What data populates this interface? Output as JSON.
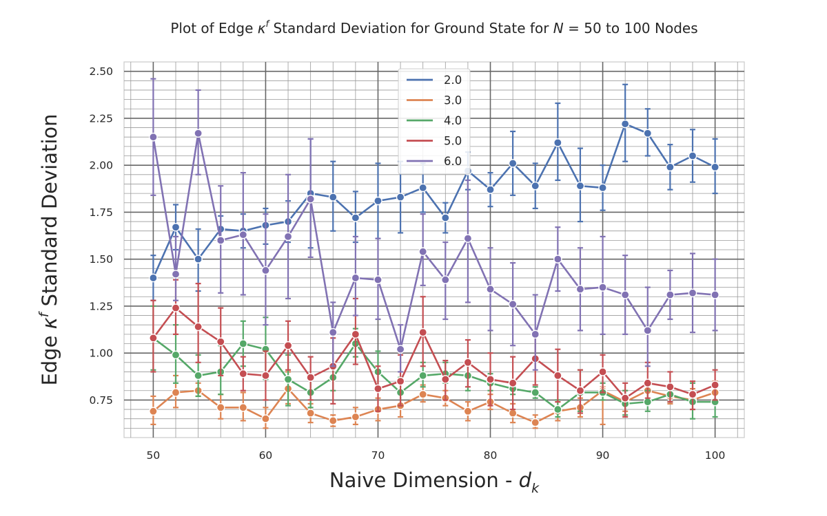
{
  "chart_data": {
    "type": "line",
    "title": "Plot of Edge κᶠ Standard Deviation for Ground State for N = 50 to 100 Nodes",
    "title_parts": {
      "pre": "Plot of Edge ",
      "kappa": "κ",
      "sup": "f",
      "mid": " Standard Deviation for Ground State for ",
      "n": "N",
      "post": " = 50 to 100 Nodes"
    },
    "xlabel": "Naive Dimension - dₖ",
    "xlabel_parts": {
      "pre": "Naive Dimension - ",
      "d": "d",
      "sub": "k"
    },
    "ylabel": "Edge κᶠ Standard Deviation",
    "ylabel_parts": {
      "pre": "Edge ",
      "kappa": "κ",
      "sup": "f",
      "post": " Standard Deviation"
    },
    "xlim": [
      47.4,
      102.6
    ],
    "ylim": [
      0.55,
      2.55
    ],
    "x_ticks": [
      50,
      60,
      70,
      80,
      90,
      100
    ],
    "y_ticks": [
      0.75,
      1.0,
      1.25,
      1.5,
      1.75,
      2.0,
      2.25,
      2.5
    ],
    "y_tick_labels": [
      "0.75",
      "1.00",
      "1.25",
      "1.50",
      "1.75",
      "2.00",
      "2.25",
      "2.50"
    ],
    "grid": true,
    "legend_position": "top-center",
    "x": [
      50,
      52,
      54,
      56,
      58,
      60,
      62,
      64,
      66,
      68,
      70,
      72,
      74,
      76,
      78,
      80,
      82,
      84,
      86,
      88,
      90,
      92,
      94,
      96,
      98,
      100
    ],
    "series": [
      {
        "name": "2.0",
        "color": "#4c72b0",
        "values": [
          1.4,
          1.67,
          1.5,
          1.66,
          1.65,
          1.68,
          1.7,
          1.85,
          1.83,
          1.72,
          1.81,
          1.83,
          1.88,
          1.72,
          1.97,
          1.87,
          2.01,
          1.89,
          2.12,
          1.89,
          1.88,
          2.22,
          2.17,
          1.99,
          2.05,
          1.99
        ],
        "err_low": [
          1.28,
          1.55,
          1.33,
          1.59,
          1.56,
          1.58,
          1.59,
          1.56,
          1.65,
          1.59,
          1.61,
          1.64,
          1.75,
          1.64,
          1.87,
          1.78,
          1.84,
          1.77,
          1.92,
          1.7,
          1.76,
          2.02,
          2.05,
          1.87,
          1.91,
          1.85
        ],
        "err_high": [
          1.52,
          1.79,
          1.66,
          1.73,
          1.74,
          1.77,
          1.81,
          2.14,
          2.02,
          1.86,
          2.01,
          2.02,
          2.01,
          1.8,
          2.07,
          1.96,
          2.18,
          2.01,
          2.33,
          2.09,
          2.0,
          2.43,
          2.3,
          2.11,
          2.19,
          2.14
        ]
      },
      {
        "name": "3.0",
        "color": "#dd8452",
        "values": [
          0.69,
          0.79,
          0.8,
          0.71,
          0.71,
          0.65,
          0.81,
          0.68,
          0.64,
          0.66,
          0.7,
          0.72,
          0.78,
          0.76,
          0.69,
          0.74,
          0.68,
          0.63,
          0.69,
          0.71,
          0.8,
          0.74,
          0.8,
          0.77,
          0.75,
          0.79
        ],
        "err_low": [
          0.62,
          0.71,
          0.77,
          0.65,
          0.64,
          0.6,
          0.73,
          0.63,
          0.61,
          0.62,
          0.64,
          0.66,
          0.74,
          0.72,
          0.64,
          0.7,
          0.63,
          0.6,
          0.64,
          0.66,
          0.62,
          0.69,
          0.75,
          0.73,
          0.7,
          0.74
        ],
        "err_high": [
          0.77,
          0.88,
          0.84,
          0.78,
          0.79,
          0.71,
          0.9,
          0.73,
          0.67,
          0.71,
          0.76,
          0.79,
          0.83,
          0.8,
          0.74,
          0.78,
          0.73,
          0.67,
          0.74,
          0.76,
          0.82,
          0.8,
          0.85,
          0.82,
          0.81,
          0.85
        ]
      },
      {
        "name": "4.0",
        "color": "#55a868",
        "values": [
          1.08,
          0.99,
          0.88,
          0.9,
          1.05,
          1.02,
          0.86,
          0.79,
          0.87,
          1.05,
          0.9,
          0.79,
          0.88,
          0.89,
          0.88,
          0.84,
          0.81,
          0.79,
          0.7,
          0.79,
          0.79,
          0.73,
          0.74,
          0.78,
          0.74,
          0.74
        ],
        "err_low": [
          0.91,
          0.84,
          0.77,
          0.78,
          0.93,
          0.86,
          0.72,
          0.71,
          0.8,
          0.98,
          0.8,
          0.72,
          0.82,
          0.84,
          0.8,
          0.8,
          0.78,
          0.76,
          0.66,
          0.69,
          0.75,
          0.67,
          0.69,
          0.74,
          0.65,
          0.66
        ],
        "err_high": [
          1.25,
          1.15,
          0.99,
          1.04,
          1.17,
          1.19,
          0.99,
          0.88,
          0.94,
          1.13,
          1.01,
          0.87,
          0.95,
          0.95,
          0.96,
          0.89,
          0.85,
          0.82,
          0.75,
          0.91,
          0.84,
          0.8,
          0.8,
          0.83,
          0.84,
          0.83
        ]
      },
      {
        "name": "5.0",
        "color": "#c44e52",
        "values": [
          1.08,
          1.24,
          1.14,
          1.06,
          0.89,
          0.88,
          1.04,
          0.87,
          0.93,
          1.1,
          0.81,
          0.85,
          1.11,
          0.86,
          0.95,
          0.86,
          0.84,
          0.97,
          0.88,
          0.8,
          0.9,
          0.76,
          0.84,
          0.82,
          0.78,
          0.83
        ],
        "err_low": [
          0.9,
          1.1,
          0.95,
          0.88,
          0.8,
          0.75,
          0.91,
          0.75,
          0.73,
          0.94,
          0.69,
          0.72,
          0.93,
          0.75,
          0.82,
          0.72,
          0.7,
          0.83,
          0.74,
          0.68,
          0.79,
          0.66,
          0.76,
          0.74,
          0.7,
          0.75
        ],
        "err_high": [
          1.28,
          1.39,
          1.37,
          1.24,
          0.98,
          1.01,
          1.17,
          0.98,
          1.08,
          1.29,
          0.93,
          0.99,
          1.3,
          0.96,
          1.07,
          1.0,
          0.98,
          1.1,
          1.02,
          0.91,
          0.99,
          0.84,
          0.95,
          0.9,
          0.85,
          0.91
        ]
      },
      {
        "name": "6.0",
        "color": "#8172b3",
        "values": [
          2.15,
          1.42,
          2.17,
          1.6,
          1.63,
          1.44,
          1.62,
          1.82,
          1.11,
          1.4,
          1.39,
          1.02,
          1.54,
          1.39,
          1.61,
          1.34,
          1.26,
          1.1,
          1.5,
          1.34,
          1.35,
          1.31,
          1.12,
          1.31,
          1.32,
          1.31
        ],
        "err_low": [
          1.84,
          1.28,
          1.95,
          1.32,
          1.31,
          1.15,
          1.29,
          1.51,
          0.93,
          1.2,
          1.18,
          0.9,
          1.36,
          1.18,
          1.27,
          1.12,
          1.04,
          0.91,
          1.33,
          1.12,
          1.1,
          1.1,
          0.93,
          1.18,
          1.11,
          1.12
        ],
        "err_high": [
          2.46,
          1.62,
          2.4,
          1.89,
          1.96,
          1.74,
          1.95,
          2.14,
          1.27,
          1.62,
          1.61,
          1.15,
          1.74,
          1.59,
          1.92,
          1.56,
          1.48,
          1.31,
          1.67,
          1.56,
          1.62,
          1.52,
          1.35,
          1.44,
          1.53,
          1.5
        ]
      }
    ]
  }
}
